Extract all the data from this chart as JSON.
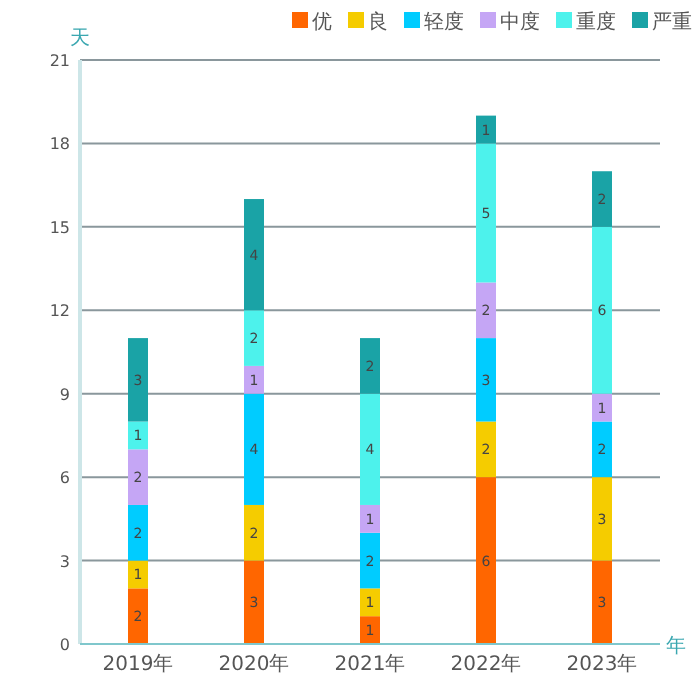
{
  "chart_data": {
    "type": "bar",
    "stacked": true,
    "ylabel": "天",
    "xlabel": "年",
    "categories": [
      "2019年",
      "2020年",
      "2021年",
      "2022年",
      "2023年"
    ],
    "series": [
      {
        "name": "优",
        "color": "#ff6600",
        "values": [
          2,
          3,
          1,
          6,
          3
        ]
      },
      {
        "name": "良",
        "color": "#f5cc00",
        "values": [
          1,
          2,
          1,
          2,
          3
        ]
      },
      {
        "name": "轻度",
        "color": "#00ccff",
        "values": [
          2,
          4,
          2,
          3,
          2
        ]
      },
      {
        "name": "中度",
        "color": "#c5a6f5",
        "values": [
          2,
          1,
          1,
          2,
          1
        ]
      },
      {
        "name": "重度",
        "color": "#4df2ec",
        "values": [
          1,
          2,
          4,
          5,
          6
        ]
      },
      {
        "name": "严重",
        "color": "#1aa3a6",
        "values": [
          3,
          4,
          2,
          1,
          2
        ]
      }
    ],
    "ylim": [
      0,
      21
    ],
    "yticks": [
      0,
      3,
      6,
      9,
      12,
      15,
      18,
      21
    ],
    "grid": "y",
    "legend": "top right",
    "data_labels": true
  }
}
